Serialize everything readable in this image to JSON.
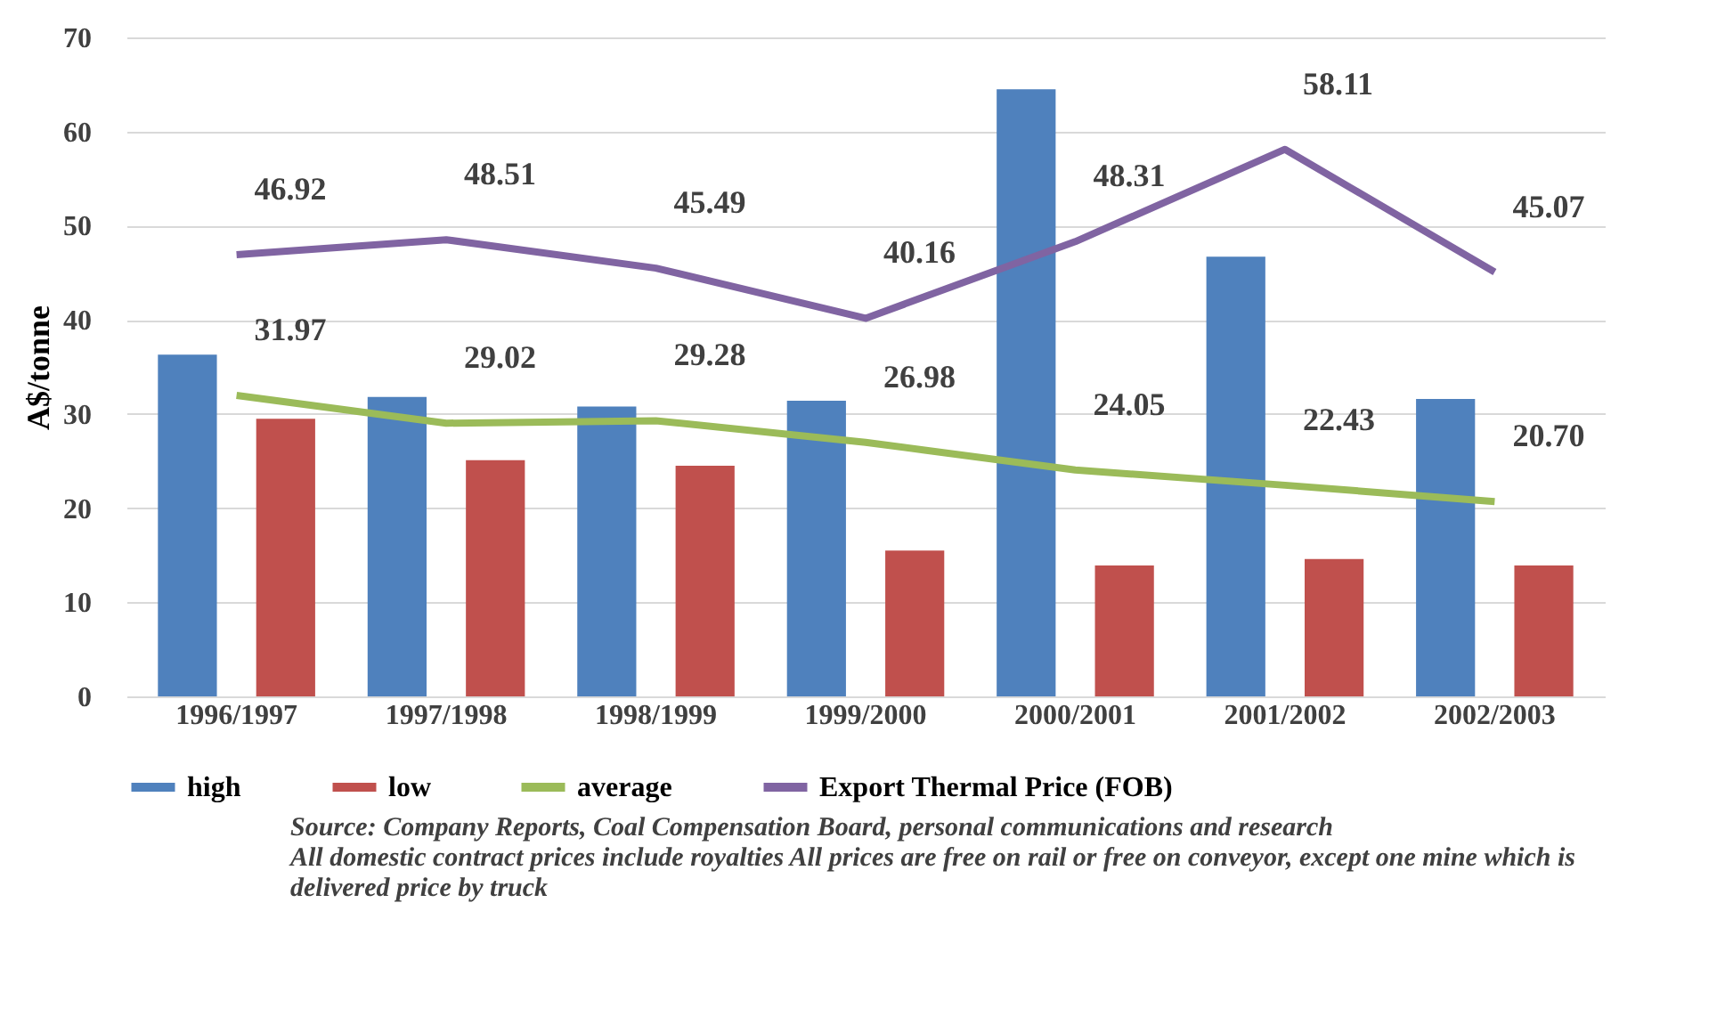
{
  "chart_data": {
    "type": "bar",
    "ylabel": "A$/tonne",
    "categories": [
      "1996/1997",
      "1997/1998",
      "1998/1999",
      "1999/2000",
      "2000/2001",
      "2001/2002",
      "2002/2003"
    ],
    "series": [
      {
        "name": "high",
        "color": "#4f81bd",
        "values": [
          36.3,
          31.8,
          30.8,
          31.4,
          64.5,
          46.7,
          31.6
        ]
      },
      {
        "name": "low",
        "color": "#c0504d",
        "values": [
          29.5,
          25.1,
          24.5,
          15.5,
          13.9,
          14.6,
          13.9
        ]
      },
      {
        "name": "average",
        "type": "line",
        "color": "#9bbb59",
        "values": [
          31.97,
          29.02,
          29.28,
          26.98,
          24.05,
          22.43,
          20.7
        ],
        "value_labels": [
          "31.97",
          "29.02",
          "29.28",
          "26.98",
          "24.05",
          "22.43",
          "20.70"
        ]
      },
      {
        "name": "Export Thermal Price (FOB)",
        "type": "line",
        "color": "#8064a2",
        "values": [
          46.92,
          48.51,
          45.49,
          40.16,
          48.31,
          58.11,
          45.07
        ],
        "value_labels": [
          "46.92",
          "48.51",
          "45.49",
          "40.16",
          "48.31",
          "58.11",
          "45.07"
        ]
      }
    ],
    "ylim": [
      0,
      70
    ],
    "yticks": [
      0,
      10,
      20,
      30,
      40,
      50,
      60,
      70
    ],
    "grid": "y",
    "legend": "bottom",
    "annotations": [
      "Source: Company Reports, Coal Compensation Board, personal communications and research",
      "All domestic contract prices include royalties All prices are free on rail or free on conveyor, except one mine which is delivered price by truck"
    ]
  }
}
